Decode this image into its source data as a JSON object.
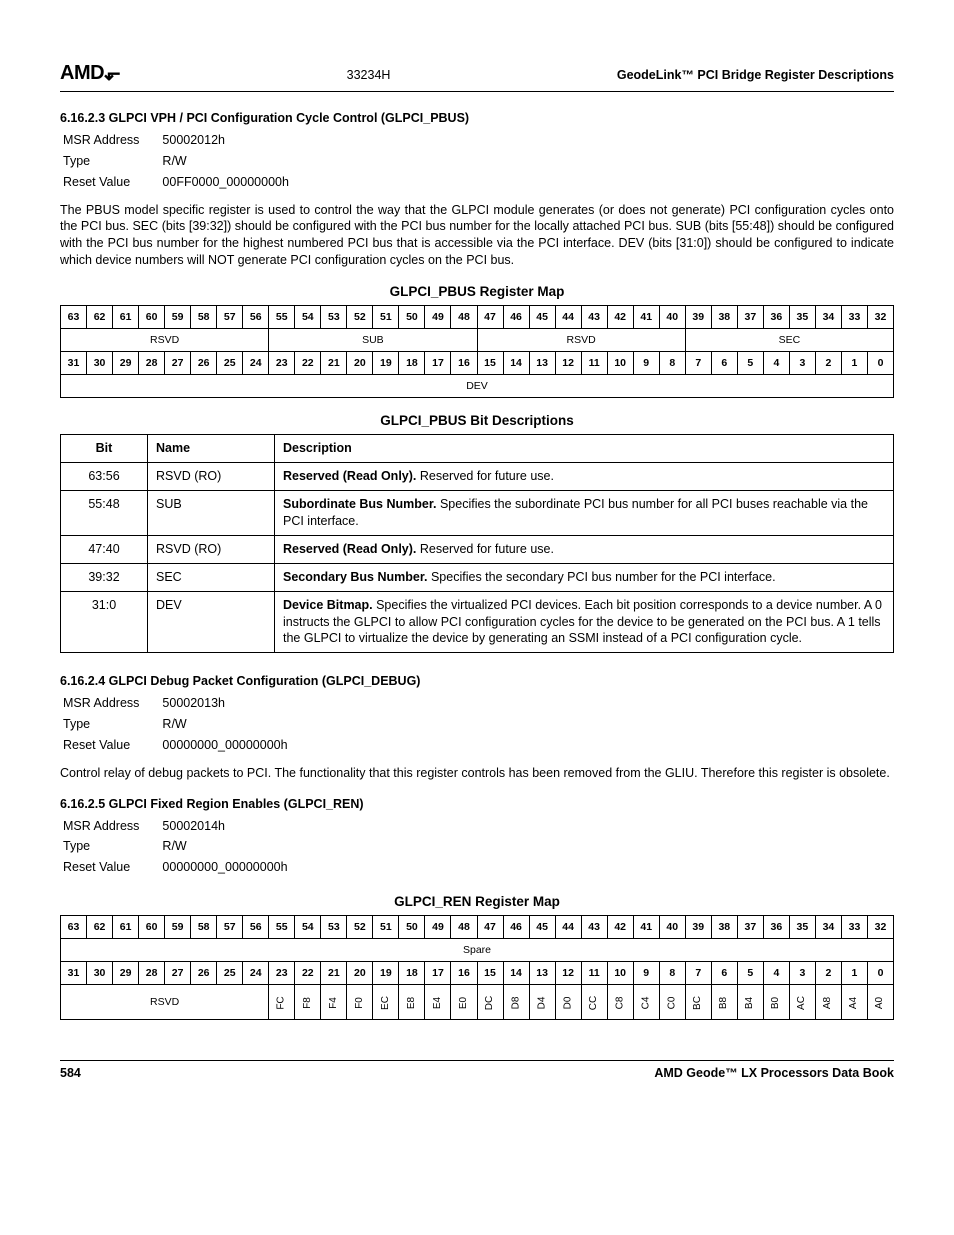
{
  "header": {
    "logo": "AMD",
    "doc_num": "33234H",
    "right": "GeodeLink™ PCI Bridge Register Descriptions"
  },
  "sec1": {
    "title": "6.16.2.3  GLPCI VPH / PCI Configuration Cycle Control (GLPCI_PBUS)",
    "msr_label": "MSR Address",
    "msr_val": "50002012h",
    "type_label": "Type",
    "type_val": "R/W",
    "reset_label": "Reset Value",
    "reset_val": "00FF0000_00000000h",
    "para": "The PBUS model specific register is used to control the way that the GLPCI module generates (or does not generate) PCI configuration cycles onto the PCI bus. SEC (bits [39:32]) should be configured with the PCI bus number for the locally attached PCI bus. SUB (bits [55:48]) should be configured with the PCI bus number for the highest numbered PCI bus that is accessible via the PCI interface. DEV (bits [31:0]) should be configured to indicate which device numbers will NOT generate PCI configuration cycles on the PCI bus."
  },
  "pbus_map": {
    "title": "GLPCI_PBUS Register Map",
    "row1_bits": [
      "63",
      "62",
      "61",
      "60",
      "59",
      "58",
      "57",
      "56",
      "55",
      "54",
      "53",
      "52",
      "51",
      "50",
      "49",
      "48",
      "47",
      "46",
      "45",
      "44",
      "43",
      "42",
      "41",
      "40",
      "39",
      "38",
      "37",
      "36",
      "35",
      "34",
      "33",
      "32"
    ],
    "row1_fields": [
      {
        "label": "RSVD",
        "span": 8
      },
      {
        "label": "SUB",
        "span": 8
      },
      {
        "label": "RSVD",
        "span": 8
      },
      {
        "label": "SEC",
        "span": 8
      }
    ],
    "row2_bits": [
      "31",
      "30",
      "29",
      "28",
      "27",
      "26",
      "25",
      "24",
      "23",
      "22",
      "21",
      "20",
      "19",
      "18",
      "17",
      "16",
      "15",
      "14",
      "13",
      "12",
      "11",
      "10",
      "9",
      "8",
      "7",
      "6",
      "5",
      "4",
      "3",
      "2",
      "1",
      "0"
    ],
    "row2_fields": [
      {
        "label": "DEV",
        "span": 32
      }
    ]
  },
  "pbus_desc": {
    "title": "GLPCI_PBUS Bit Descriptions",
    "headers": {
      "bit": "Bit",
      "name": "Name",
      "desc": "Description"
    },
    "rows": [
      {
        "bit": "63:56",
        "name": "RSVD (RO)",
        "desc_b": "Reserved (Read Only).",
        "desc": " Reserved for future use."
      },
      {
        "bit": "55:48",
        "name": "SUB",
        "desc_b": "Subordinate Bus Number.",
        "desc": " Specifies the subordinate PCI bus number for all PCI buses reachable via the PCI interface."
      },
      {
        "bit": "47:40",
        "name": "RSVD (RO)",
        "desc_b": "Reserved (Read Only).",
        "desc": " Reserved for future use."
      },
      {
        "bit": "39:32",
        "name": "SEC",
        "desc_b": "Secondary Bus Number.",
        "desc": " Specifies the secondary PCI bus number for the PCI interface."
      },
      {
        "bit": "31:0",
        "name": "DEV",
        "desc_b": "Device Bitmap.",
        "desc": " Specifies the virtualized PCI devices. Each bit position corresponds to a device number. A 0 instructs the GLPCI to allow PCI configuration cycles for the device to be generated on the PCI bus. A 1 tells the GLPCI to virtualize the device by generating an SSMI instead of a PCI configuration cycle."
      }
    ]
  },
  "sec2": {
    "title": "6.16.2.4  GLPCI Debug Packet Configuration (GLPCI_DEBUG)",
    "msr_label": "MSR Address",
    "msr_val": "50002013h",
    "type_label": "Type",
    "type_val": "R/W",
    "reset_label": "Reset Value",
    "reset_val": "00000000_00000000h",
    "para": "Control relay of debug packets to PCI. The functionality that this register controls has been removed from the GLIU. Therefore this register is obsolete."
  },
  "sec3": {
    "title": "6.16.2.5  GLPCI Fixed Region Enables (GLPCI_REN)",
    "msr_label": "MSR Address",
    "msr_val": "50002014h",
    "type_label": "Type",
    "type_val": "R/W",
    "reset_label": "Reset Value",
    "reset_val": "00000000_00000000h"
  },
  "ren_map": {
    "title": "GLPCI_REN Register Map",
    "row1_bits": [
      "63",
      "62",
      "61",
      "60",
      "59",
      "58",
      "57",
      "56",
      "55",
      "54",
      "53",
      "52",
      "51",
      "50",
      "49",
      "48",
      "47",
      "46",
      "45",
      "44",
      "43",
      "42",
      "41",
      "40",
      "39",
      "38",
      "37",
      "36",
      "35",
      "34",
      "33",
      "32"
    ],
    "row1_fields": [
      {
        "label": "Spare",
        "span": 32
      }
    ],
    "row2_bits": [
      "31",
      "30",
      "29",
      "28",
      "27",
      "26",
      "25",
      "24",
      "23",
      "22",
      "21",
      "20",
      "19",
      "18",
      "17",
      "16",
      "15",
      "14",
      "13",
      "12",
      "11",
      "10",
      "9",
      "8",
      "7",
      "6",
      "5",
      "4",
      "3",
      "2",
      "1",
      "0"
    ],
    "row2_rsvd": {
      "label": "RSVD",
      "span": 8
    },
    "row2_labels": [
      "FC",
      "F8",
      "F4",
      "F0",
      "EC",
      "E8",
      "E4",
      "E0",
      "DC",
      "D8",
      "D4",
      "D0",
      "CC",
      "C8",
      "C4",
      "C0",
      "BC",
      "B8",
      "B4",
      "B0",
      "AC",
      "A8",
      "A4",
      "A0"
    ]
  },
  "footer": {
    "page": "584",
    "right": "AMD Geode™ LX Processors Data Book"
  }
}
